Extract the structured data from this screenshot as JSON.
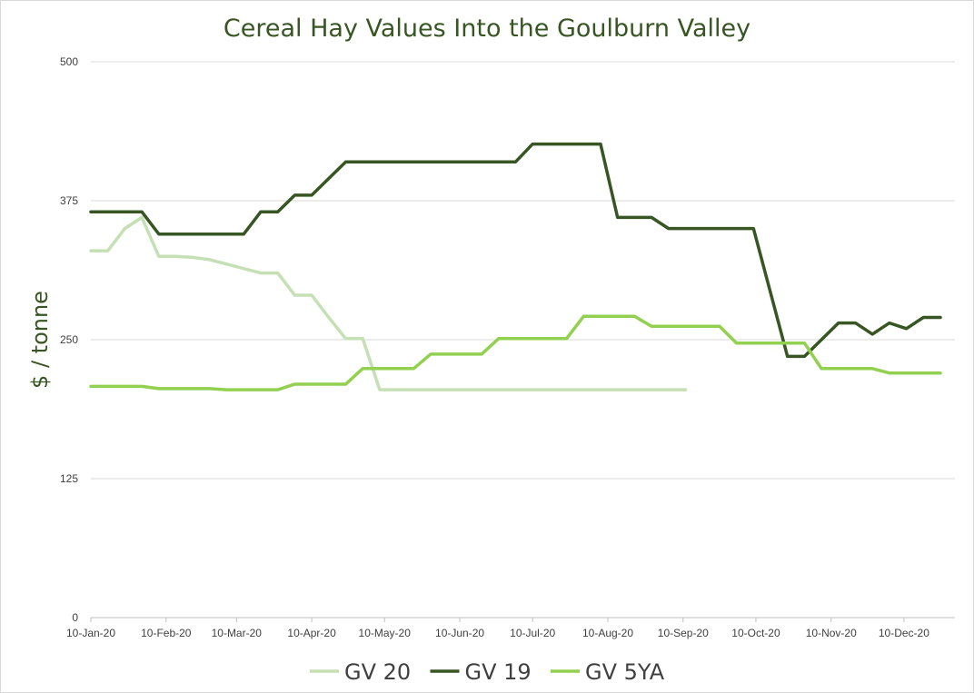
{
  "chart_data": {
    "type": "line",
    "title": "Cereal Hay Values Into the Goulburn Valley",
    "xlabel": "",
    "ylabel": "$ / tonne",
    "ylim": [
      0,
      500
    ],
    "y_ticks": [
      "0",
      "125",
      "250",
      "375",
      "500"
    ],
    "x_ticks": [
      "10-Jan-20",
      "10-Feb-20",
      "10-Mar-20",
      "10-Apr-20",
      "10-May-20",
      "10-Jun-20",
      "10-Jul-20",
      "10-Aug-20",
      "10-Sep-20",
      "10-Oct-20",
      "10-Nov-20",
      "10-Dec-20"
    ],
    "x_range": [
      "2020-01-10",
      "2020-12-31"
    ],
    "grid": "horizontal",
    "legend": "bottom",
    "series": [
      {
        "name": "GV 20",
        "color": "#c5e0b4",
        "points": [
          [
            "2020-01-10",
            330
          ],
          [
            "2020-01-17",
            330
          ],
          [
            "2020-01-24",
            350
          ],
          [
            "2020-01-31",
            360
          ],
          [
            "2020-02-07",
            325
          ],
          [
            "2020-02-14",
            325
          ],
          [
            "2020-02-21",
            324
          ],
          [
            "2020-02-28",
            322
          ],
          [
            "2020-03-06",
            318
          ],
          [
            "2020-03-13",
            314
          ],
          [
            "2020-03-20",
            310
          ],
          [
            "2020-03-27",
            310
          ],
          [
            "2020-04-03",
            290
          ],
          [
            "2020-04-10",
            290
          ],
          [
            "2020-04-17",
            270
          ],
          [
            "2020-04-24",
            251
          ],
          [
            "2020-05-01",
            251
          ],
          [
            "2020-05-08",
            205
          ],
          [
            "2020-09-11",
            205
          ]
        ]
      },
      {
        "name": "GV 19",
        "color": "#375623",
        "points": [
          [
            "2020-01-10",
            365
          ],
          [
            "2020-01-31",
            365
          ],
          [
            "2020-02-07",
            345
          ],
          [
            "2020-03-13",
            345
          ],
          [
            "2020-03-20",
            365
          ],
          [
            "2020-03-27",
            365
          ],
          [
            "2020-04-03",
            380
          ],
          [
            "2020-04-10",
            380
          ],
          [
            "2020-04-24",
            410
          ],
          [
            "2020-07-03",
            410
          ],
          [
            "2020-07-10",
            426
          ],
          [
            "2020-08-07",
            426
          ],
          [
            "2020-08-14",
            360
          ],
          [
            "2020-08-28",
            360
          ],
          [
            "2020-09-04",
            350
          ],
          [
            "2020-10-09",
            350
          ],
          [
            "2020-10-23",
            235
          ],
          [
            "2020-10-30",
            235
          ],
          [
            "2020-11-13",
            265
          ],
          [
            "2020-11-20",
            265
          ],
          [
            "2020-11-27",
            255
          ],
          [
            "2020-12-04",
            265
          ],
          [
            "2020-12-11",
            260
          ],
          [
            "2020-12-18",
            270
          ],
          [
            "2020-12-25",
            270
          ]
        ]
      },
      {
        "name": "GV 5YA",
        "color": "#92d050",
        "points": [
          [
            "2020-01-10",
            208
          ],
          [
            "2020-01-31",
            208
          ],
          [
            "2020-02-07",
            206
          ],
          [
            "2020-02-28",
            206
          ],
          [
            "2020-03-06",
            205
          ],
          [
            "2020-03-27",
            205
          ],
          [
            "2020-04-03",
            210
          ],
          [
            "2020-04-24",
            210
          ],
          [
            "2020-05-01",
            224
          ],
          [
            "2020-05-22",
            224
          ],
          [
            "2020-05-29",
            237
          ],
          [
            "2020-06-19",
            237
          ],
          [
            "2020-06-26",
            251
          ],
          [
            "2020-07-24",
            251
          ],
          [
            "2020-07-31",
            271
          ],
          [
            "2020-08-21",
            271
          ],
          [
            "2020-08-28",
            262
          ],
          [
            "2020-09-25",
            262
          ],
          [
            "2020-10-02",
            247
          ],
          [
            "2020-10-30",
            247
          ],
          [
            "2020-11-06",
            224
          ],
          [
            "2020-11-27",
            224
          ],
          [
            "2020-12-04",
            220
          ],
          [
            "2020-12-25",
            220
          ]
        ]
      }
    ]
  }
}
